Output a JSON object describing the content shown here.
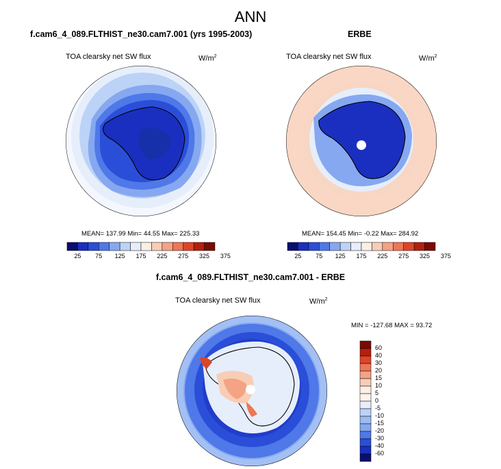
{
  "figure_title": "ANN",
  "panels": [
    {
      "case_label": "f.cam6_4_089.FLTHIST_ne30.cam7.001 (yrs 1995-2003)",
      "variable": "TOA clearsky net SW flux",
      "units": "W/m",
      "units_exp": "2",
      "stats": "MEAN= 137.99  Min=  44.55  Max= 225.33",
      "colorbar_ticks": [
        "25",
        "75",
        "125",
        "175",
        "225",
        "275",
        "325",
        "375"
      ]
    },
    {
      "case_label": "ERBE",
      "variable": "TOA clearsky net SW flux",
      "units": "W/m",
      "units_exp": "2",
      "stats": "MEAN= 154.45  Min=  -0.22  Max= 284.92",
      "colorbar_ticks": [
        "25",
        "75",
        "125",
        "175",
        "225",
        "275",
        "325",
        "375"
      ]
    },
    {
      "case_label": "f.cam6_4_089.FLTHIST_ne30.cam7.001 - ERBE",
      "variable": "TOA clearsky net SW flux",
      "units": "W/m",
      "units_exp": "2",
      "stats": "MIN = -127.68 MAX =  93.72",
      "colorbar_ticks": [
        "60",
        "40",
        "30",
        "20",
        "15",
        "10",
        "5",
        "0",
        "-5",
        "-10",
        "-15",
        "-20",
        "-30",
        "-40",
        "-60"
      ]
    }
  ],
  "colors": {
    "abs_scale": [
      "#0a0f6e",
      "#1a2fbf",
      "#2a4ed8",
      "#4f78e8",
      "#86a8f0",
      "#bcd3f7",
      "#e6eefb",
      "#fbeee4",
      "#f8cdb6",
      "#f4a384",
      "#ee7656",
      "#dd4528",
      "#b4200e",
      "#7a0a04"
    ],
    "diff_scale": [
      "#7a0a04",
      "#b4200e",
      "#dd4528",
      "#ee7656",
      "#f4a384",
      "#f8cdb6",
      "#fbeee4",
      "#fdf3ec",
      "#e6eefb",
      "#bcd3f7",
      "#9bbcf3",
      "#86a8f0",
      "#4f78e8",
      "#2a4ed8",
      "#1a2fbf",
      "#0a0f6e"
    ]
  }
}
